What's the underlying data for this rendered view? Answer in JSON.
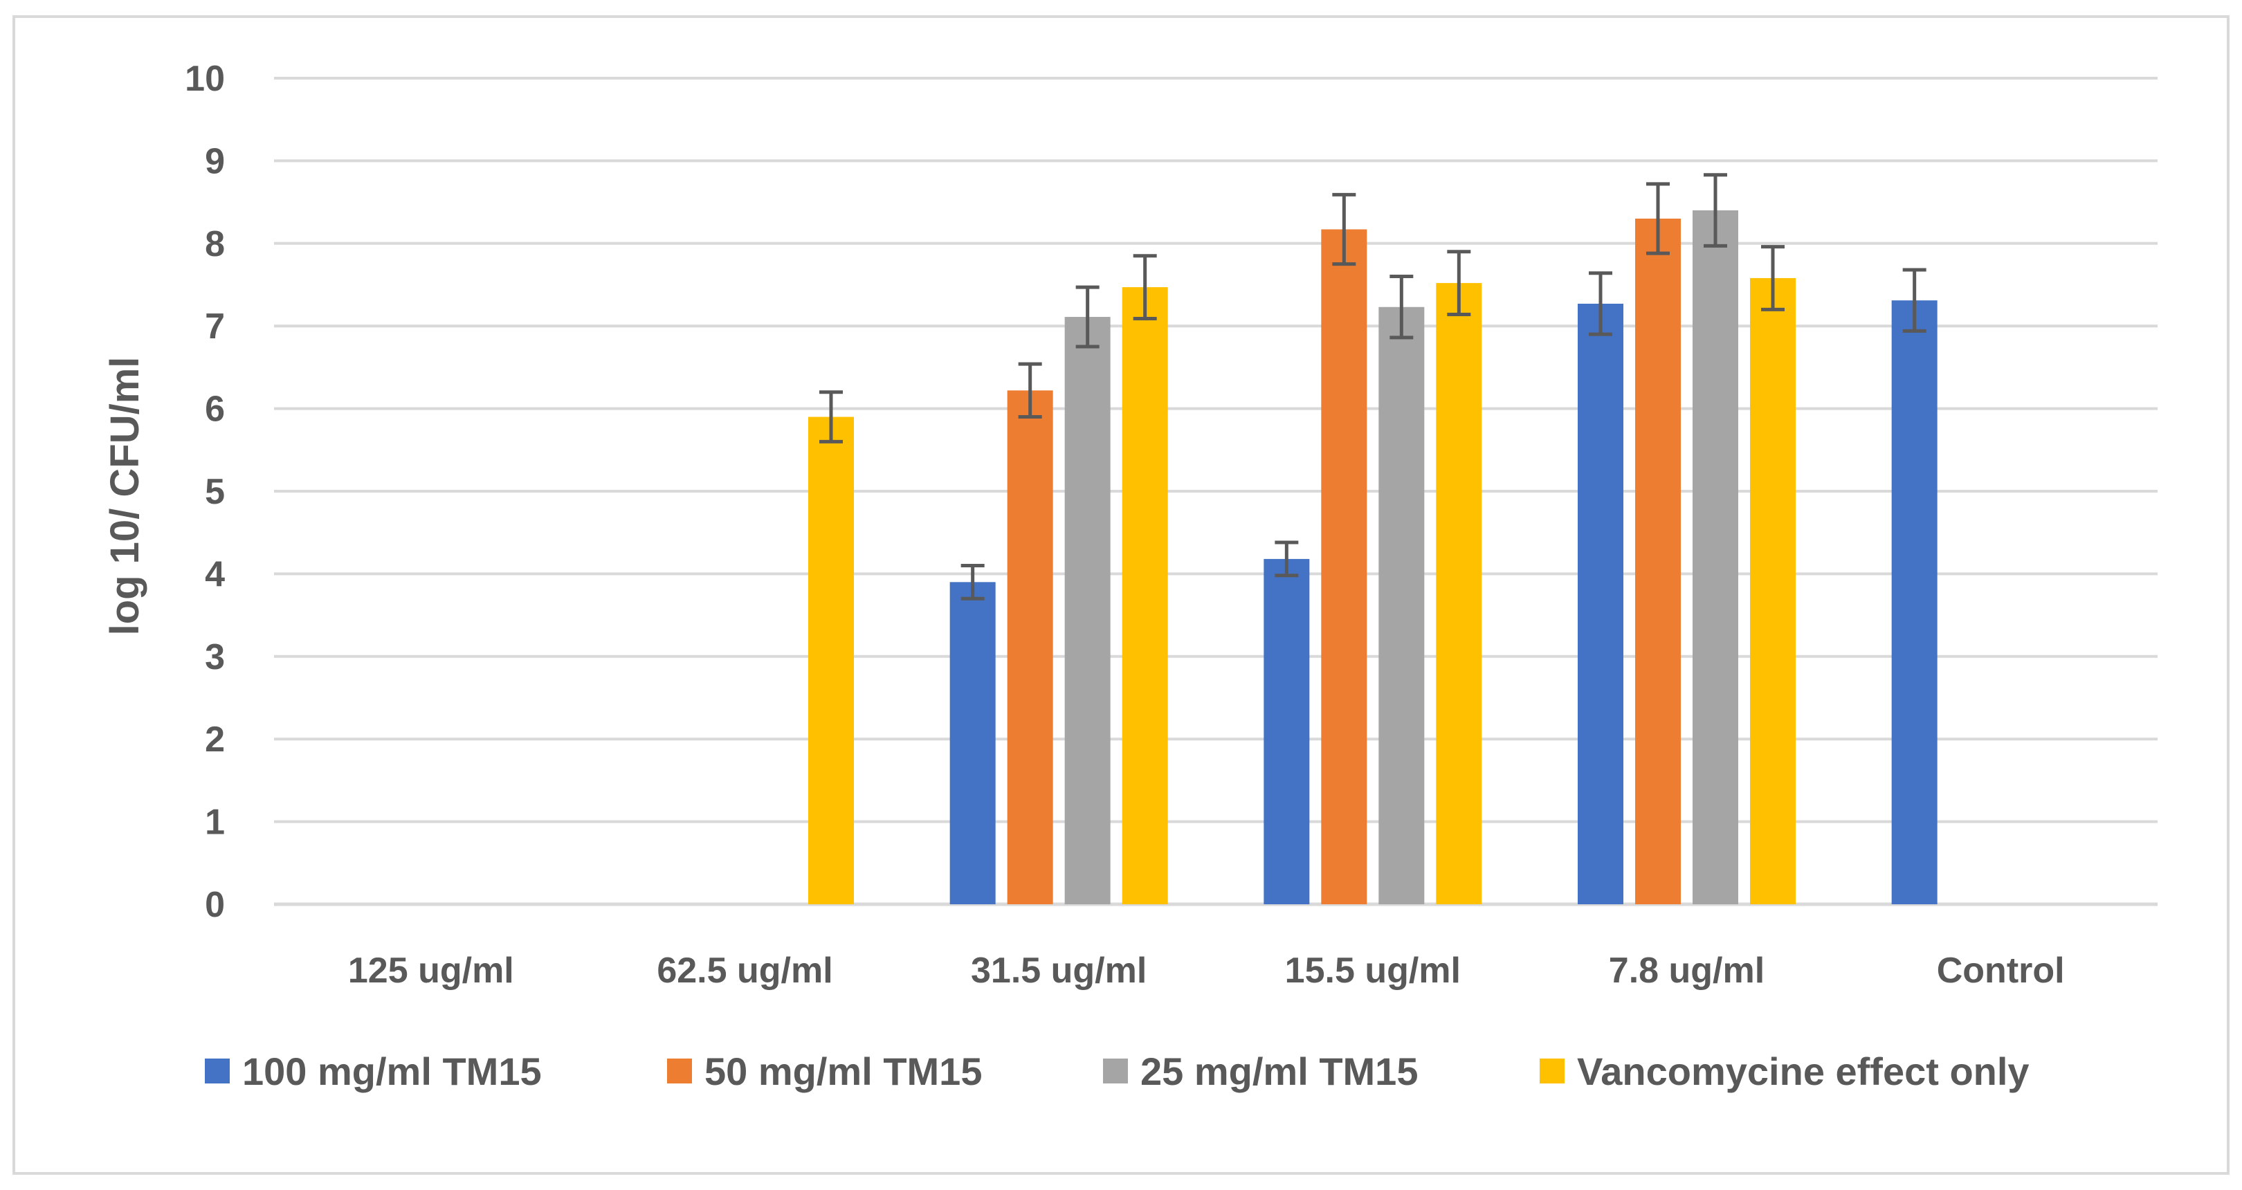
{
  "chart_data": {
    "type": "bar",
    "title": "",
    "xlabel": "",
    "ylabel": "log 10/ CFU/ml",
    "ylim": [
      0,
      10
    ],
    "yticks": [
      "0",
      "1",
      "2",
      "3",
      "4",
      "5",
      "6",
      "7",
      "8",
      "9",
      "10"
    ],
    "grid": true,
    "legend_position": "bottom",
    "categories": [
      "125 ug/ml",
      "62.5 ug/ml",
      "31.5 ug/ml",
      "15.5 ug/ml",
      "7.8 ug/ml",
      "Control"
    ],
    "series": [
      {
        "name": "100 mg/ml TM15",
        "color": "#4472c4",
        "values": [
          null,
          null,
          3.9,
          4.18,
          7.27,
          7.31
        ],
        "errors": [
          null,
          null,
          0.2,
          0.2,
          0.37,
          0.37
        ]
      },
      {
        "name": "50 mg/ml TM15",
        "color": "#ed7d31",
        "values": [
          null,
          null,
          6.22,
          8.17,
          8.3,
          null
        ],
        "errors": [
          null,
          null,
          0.32,
          0.42,
          0.42,
          null
        ]
      },
      {
        "name": "25 mg/ml TM15",
        "color": "#a5a5a5",
        "values": [
          null,
          null,
          7.11,
          7.23,
          8.4,
          null
        ],
        "errors": [
          null,
          null,
          0.36,
          0.37,
          0.43,
          null
        ]
      },
      {
        "name": "Vancomycine effect only",
        "color": "#ffc000",
        "values": [
          null,
          5.9,
          7.47,
          7.52,
          7.58,
          null
        ],
        "errors": [
          null,
          0.3,
          0.38,
          0.38,
          0.38,
          null
        ]
      }
    ]
  }
}
